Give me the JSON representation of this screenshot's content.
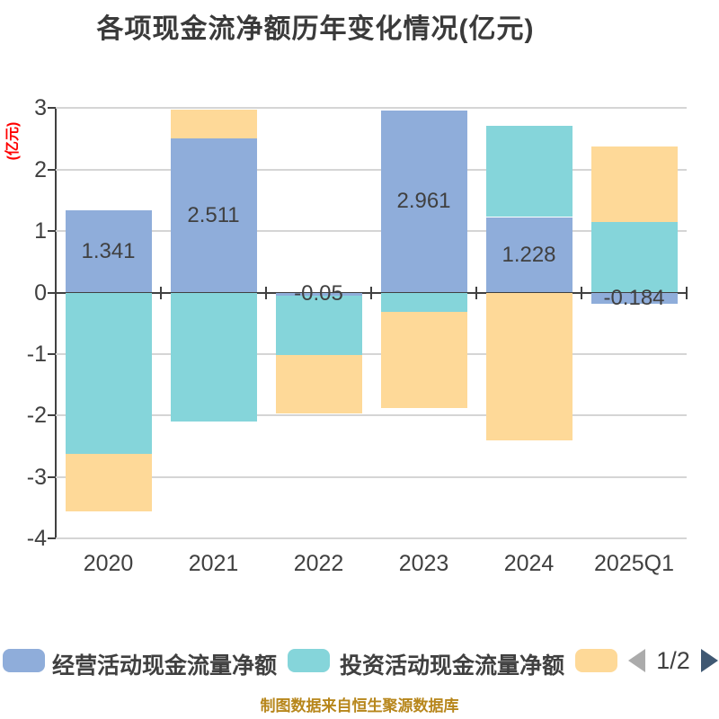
{
  "title": "各项现金流净额历年变化情况(亿元)",
  "y_axis_name": "(亿元)",
  "footer_text": "制图数据来自恒生聚源数据库",
  "pagination": {
    "page": "1/2"
  },
  "legend": {
    "items": [
      {
        "label": "经营活动现金流量净额",
        "color": "#8FADDA"
      },
      {
        "label": "投资活动现金流量净额",
        "color": "#85D5DA"
      },
      {
        "label": "",
        "color": "#FED998"
      }
    ],
    "prev_arrow_color": "#ABABAB",
    "next_arrow_color": "#3F5872"
  },
  "colors": {
    "background": "#FFFFFF",
    "title": "#3A3A3A",
    "axis": "#404040",
    "grid": "#D5D5D5",
    "y_axis_name": "#FF0000",
    "footer": "#B7861B"
  },
  "chart_data": {
    "type": "bar",
    "stacked": true,
    "title": "各项现金流净额历年变化情况(亿元)",
    "ylabel": "(亿元)",
    "ylim": [
      -4,
      3
    ],
    "yticks": [
      3,
      2,
      1,
      0,
      -1,
      -2,
      -3,
      -4
    ],
    "grid": true,
    "legend_position": "bottom",
    "categories": [
      "2020",
      "2021",
      "2022",
      "2023",
      "2024",
      "2025Q1"
    ],
    "series": [
      {
        "name": "经营活动现金流量净额",
        "color": "#8FADDA",
        "values": [
          1.341,
          2.511,
          -0.05,
          2.961,
          1.228,
          -0.184
        ],
        "data_labels": [
          "1.341",
          "2.511",
          "-0.05",
          "2.961",
          "1.228",
          "-0.184"
        ]
      },
      {
        "name": "投资活动现金流量净额",
        "color": "#85D5DA",
        "values": [
          -2.62,
          -2.1,
          -0.96,
          -0.32,
          1.49,
          1.15
        ]
      },
      {
        "name": "",
        "color": "#FED998",
        "values": [
          -0.94,
          0.46,
          -0.95,
          -1.56,
          -2.4,
          1.22
        ]
      }
    ]
  }
}
